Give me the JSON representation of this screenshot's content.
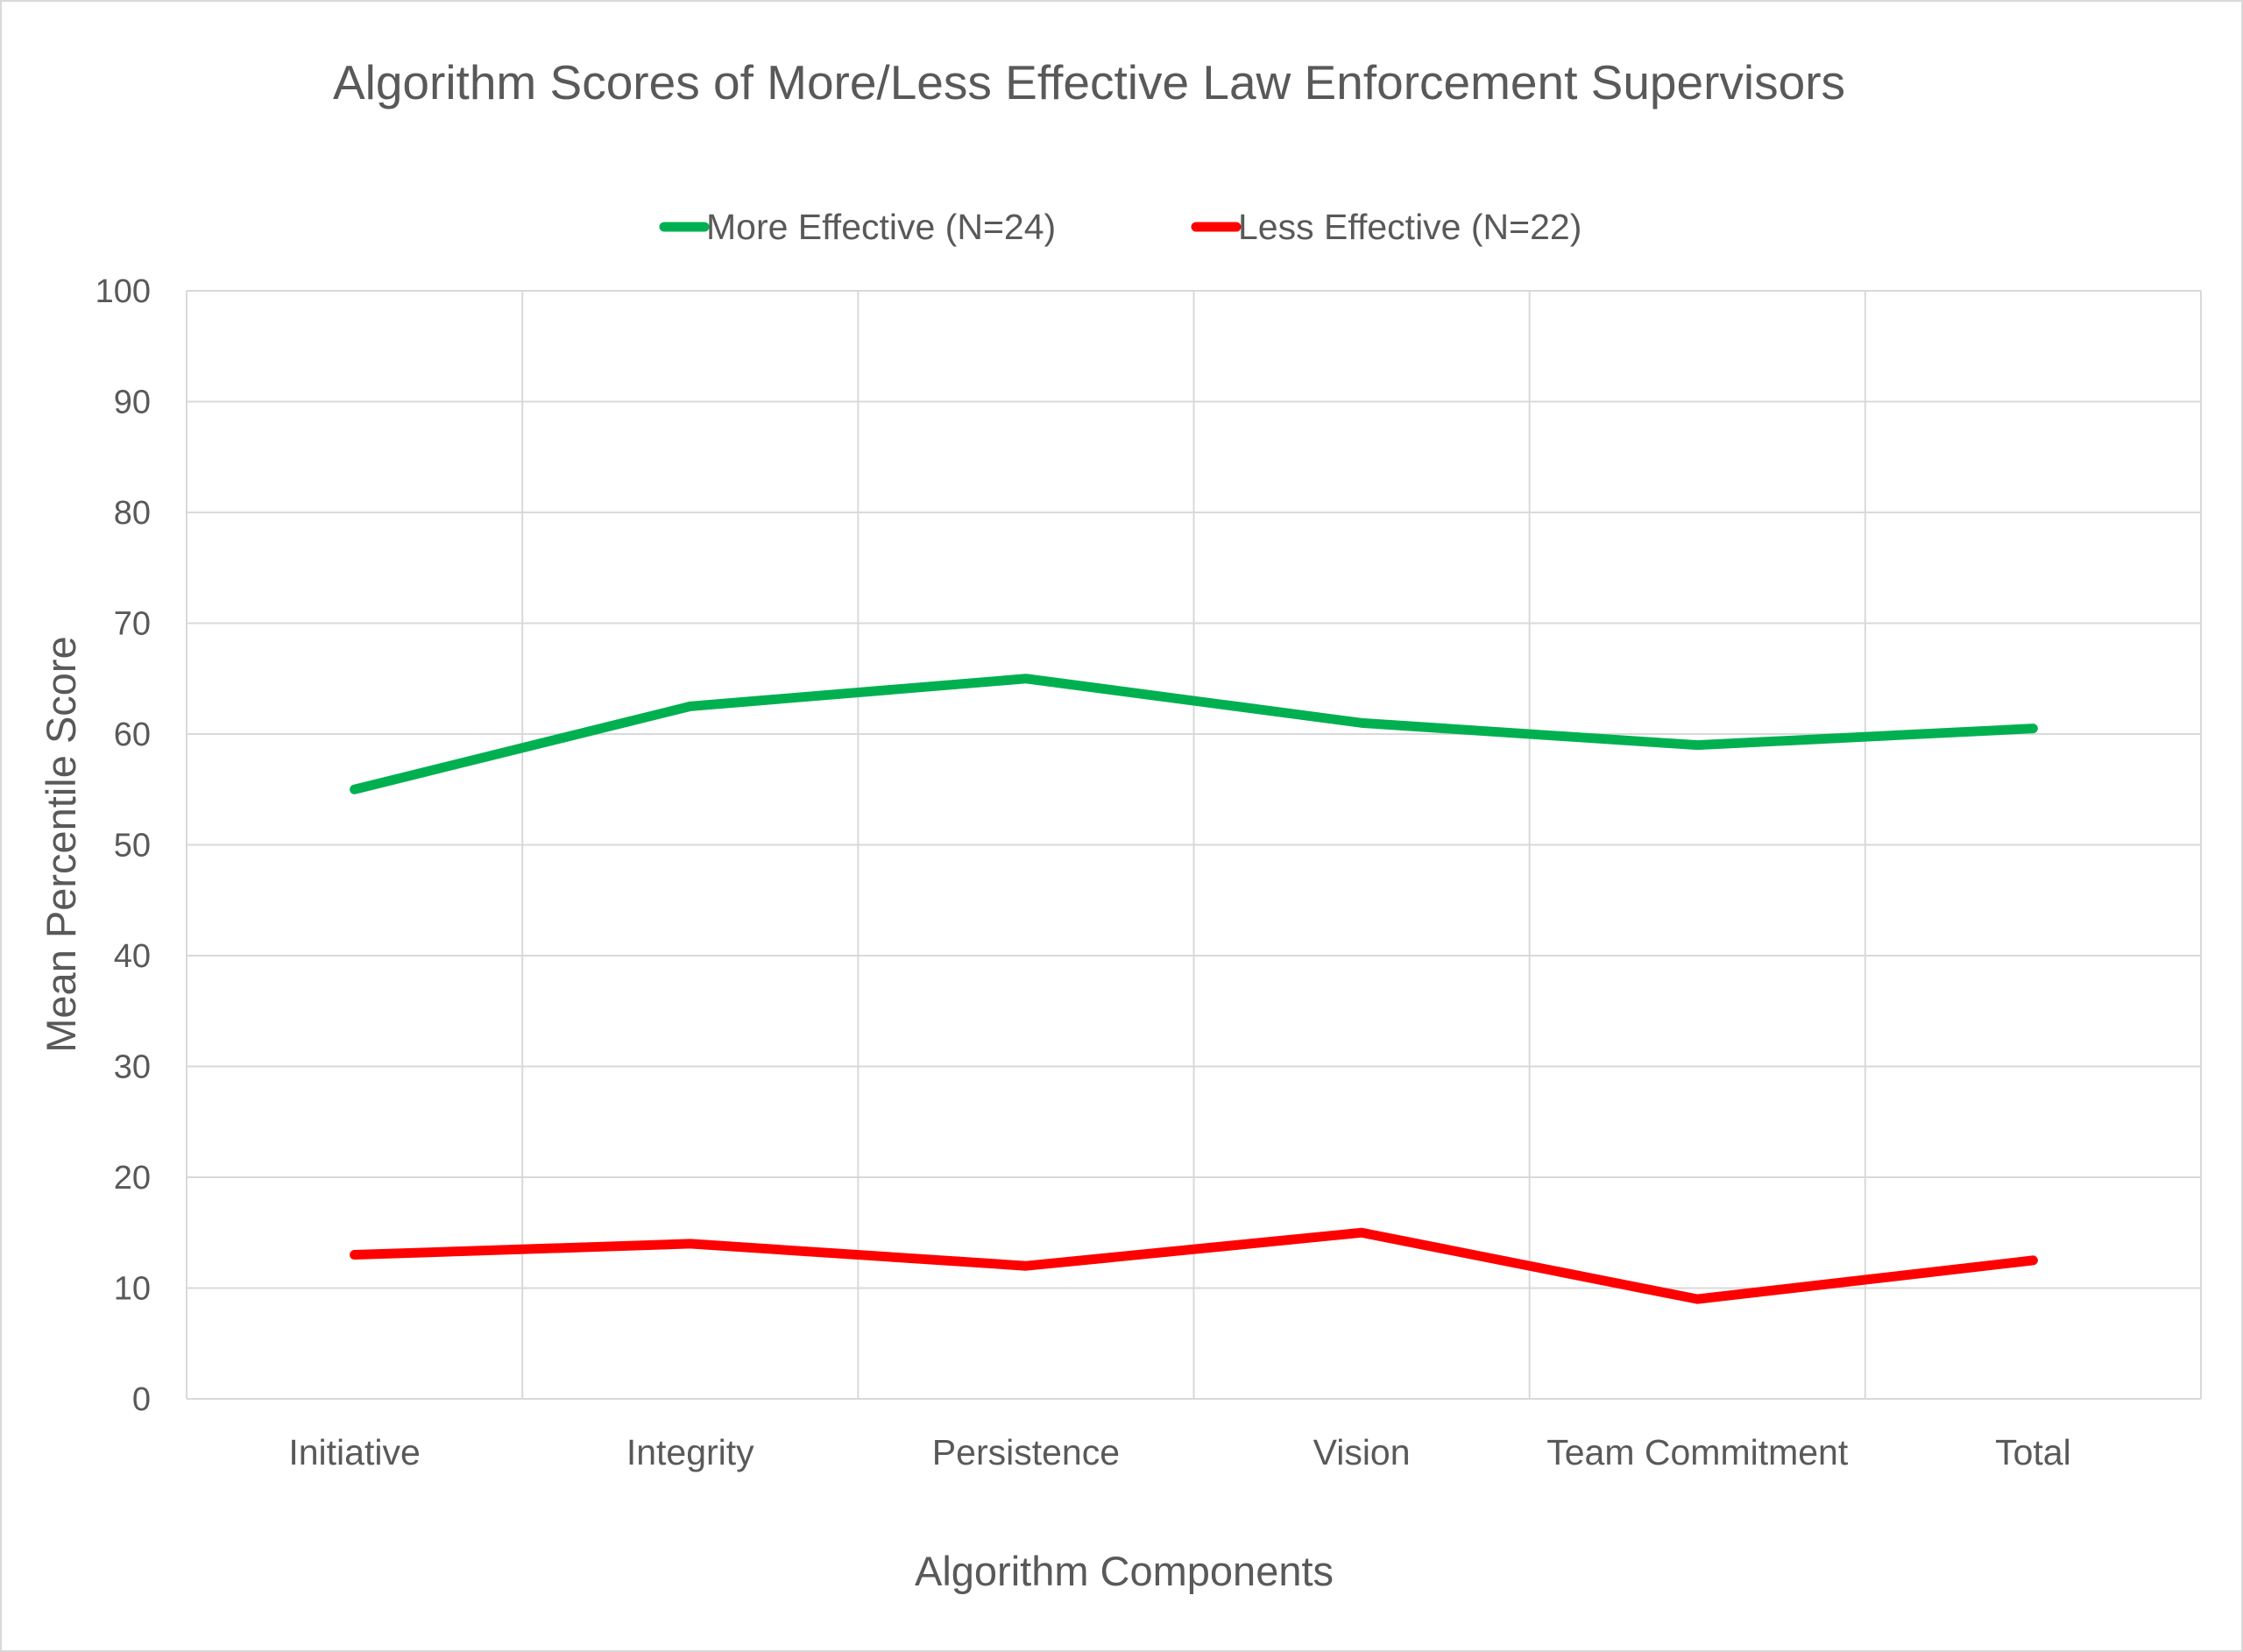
{
  "chart_data": {
    "type": "line",
    "title": "Algorithm Scores of More/Less Effective Law Enforcement Supervisors",
    "xlabel": "Algorithm Components",
    "ylabel": "Mean Percentile Score",
    "categories": [
      "Initiative",
      "Integrity",
      "Persistence",
      "Vision",
      "Team Commitment",
      "Total"
    ],
    "ylim": [
      0,
      100
    ],
    "yticks": [
      0,
      10,
      20,
      30,
      40,
      50,
      60,
      70,
      80,
      90,
      100
    ],
    "grid": true,
    "legend_position": "top-center",
    "series": [
      {
        "name": "More Effective (N=24)",
        "color": "#00b050",
        "values": [
          55,
          62.5,
          65,
          61,
          59,
          60.5
        ]
      },
      {
        "name": "Less Effective (N=22)",
        "color": "#ff0000",
        "values": [
          13,
          14,
          12,
          15,
          9,
          12.5
        ]
      }
    ]
  }
}
